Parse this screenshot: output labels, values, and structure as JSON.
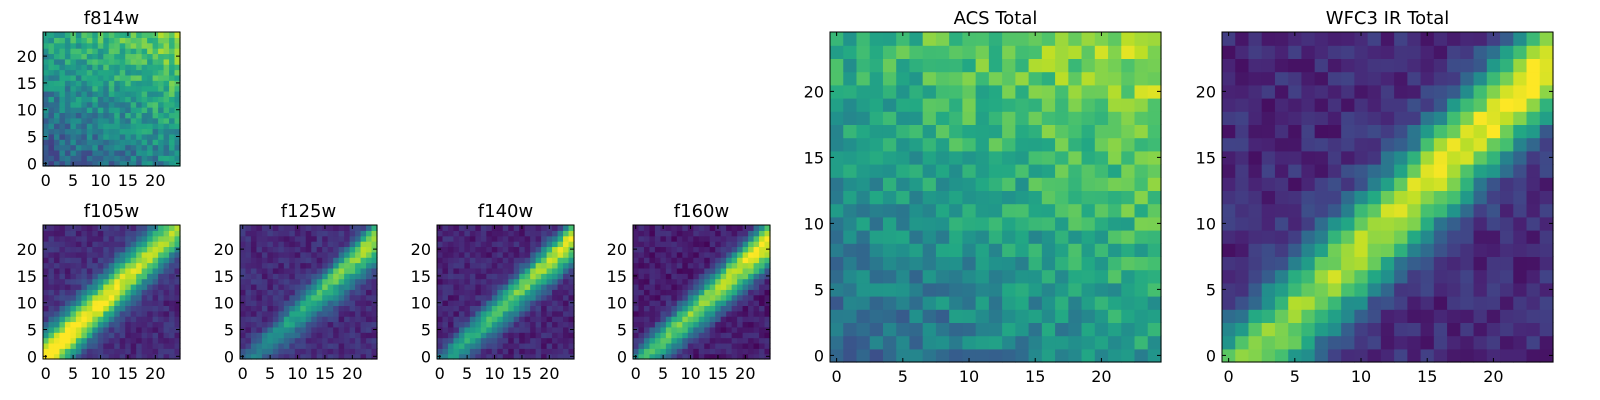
{
  "figure": {
    "colormap": "viridis",
    "value_range": [
      0,
      1
    ]
  },
  "chart_data": [
    {
      "type": "heatmap",
      "title": "f814w",
      "grid_size": 25,
      "x_ticks": [
        "0",
        "5",
        "10",
        "15",
        "20"
      ],
      "y_ticks": [
        "0",
        "5",
        "10",
        "15",
        "20"
      ],
      "pattern": {
        "kind": "gradient",
        "base": 0.25,
        "gx": 0.22,
        "gy": 0.33,
        "noise": 0.14
      }
    },
    {
      "type": "heatmap",
      "title": "f105w",
      "grid_size": 25,
      "x_ticks": [
        "0",
        "5",
        "10",
        "15",
        "20"
      ],
      "y_ticks": [
        "0",
        "5",
        "10",
        "15",
        "20"
      ],
      "pattern": {
        "kind": "diagonal",
        "base": 0.12,
        "peak": 0.85,
        "width": 3.2,
        "offset": 0,
        "fade": -0.15,
        "noise": 0.07,
        "second": 0
      }
    },
    {
      "type": "heatmap",
      "title": "f125w",
      "grid_size": 25,
      "x_ticks": [
        "0",
        "5",
        "10",
        "15",
        "20"
      ],
      "y_ticks": [
        "0",
        "5",
        "10",
        "15",
        "20"
      ],
      "pattern": {
        "kind": "diagonal",
        "base": 0.12,
        "peak": 0.55,
        "width": 2.0,
        "offset": -2,
        "fade": 0.45,
        "noise": 0.07,
        "second": 0.35
      }
    },
    {
      "type": "heatmap",
      "title": "f140w",
      "grid_size": 25,
      "x_ticks": [
        "0",
        "5",
        "10",
        "15",
        "20"
      ],
      "y_ticks": [
        "0",
        "5",
        "10",
        "15",
        "20"
      ],
      "pattern": {
        "kind": "diagonal",
        "base": 0.1,
        "peak": 0.65,
        "width": 2.2,
        "offset": -2,
        "fade": 0.35,
        "noise": 0.07,
        "second": 0.3
      }
    },
    {
      "type": "heatmap",
      "title": "f160w",
      "grid_size": 25,
      "x_ticks": [
        "0",
        "5",
        "10",
        "15",
        "20"
      ],
      "y_ticks": [
        "0",
        "5",
        "10",
        "15",
        "20"
      ],
      "pattern": {
        "kind": "diagonal",
        "base": 0.08,
        "peak": 0.75,
        "width": 2.4,
        "offset": -2,
        "fade": 0.2,
        "noise": 0.07,
        "second": 0.45
      }
    },
    {
      "type": "heatmap",
      "title": "ACS Total",
      "grid_size": 25,
      "x_ticks": [
        "0",
        "5",
        "10",
        "15",
        "20"
      ],
      "y_ticks": [
        "0",
        "5",
        "10",
        "15",
        "20"
      ],
      "pattern": {
        "kind": "gradient",
        "base": 0.3,
        "gx": 0.25,
        "gy": 0.33,
        "noise": 0.13
      }
    },
    {
      "type": "heatmap",
      "title": "WFC3 IR Total",
      "grid_size": 25,
      "x_ticks": [
        "0",
        "5",
        "10",
        "15",
        "20"
      ],
      "y_ticks": [
        "0",
        "5",
        "10",
        "15",
        "20"
      ],
      "pattern": {
        "kind": "diagonal",
        "base": 0.12,
        "peak": 0.8,
        "width": 3.0,
        "offset": -2,
        "fade": 0.15,
        "noise": 0.08,
        "second": 0
      }
    }
  ]
}
